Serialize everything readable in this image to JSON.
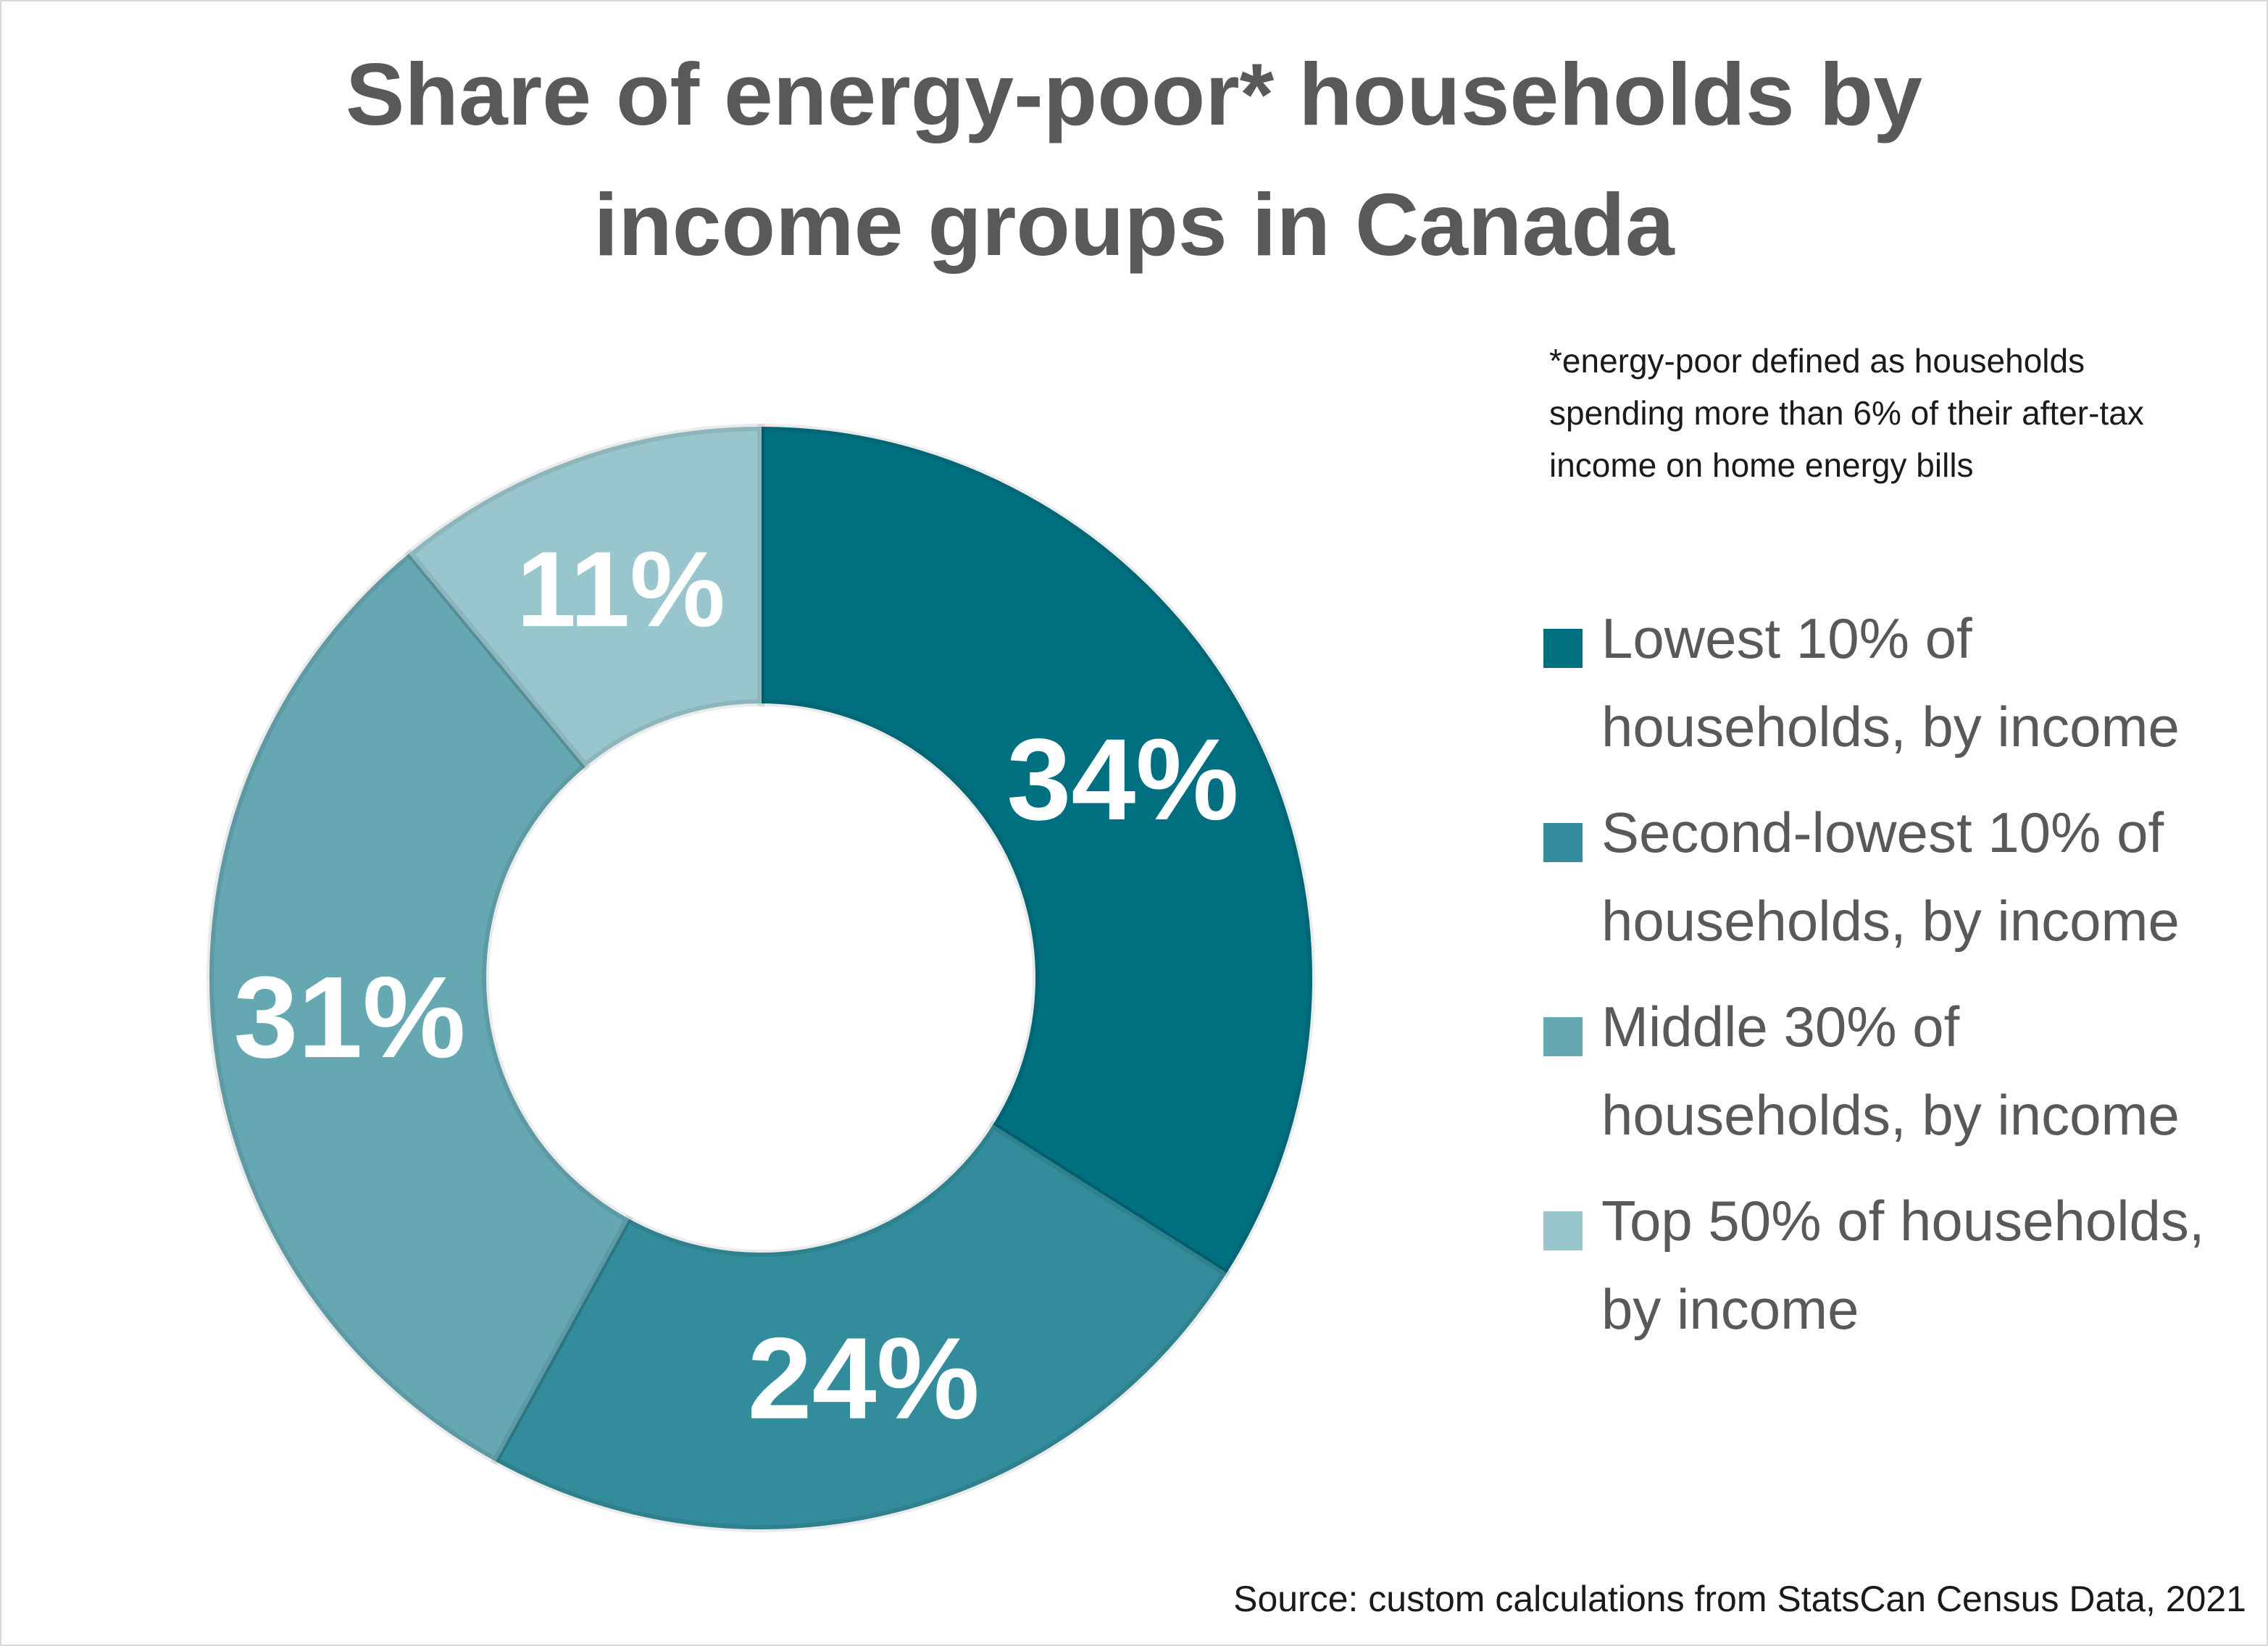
{
  "title_lines": [
    "Share of energy-poor* households by",
    "income groups in Canada"
  ],
  "footnote_lines": [
    "*energy-poor defined as households",
    "spending more than 6% of their after-tax",
    "income on home energy bills"
  ],
  "source": "Source: custom calculations from StatsCan Census Data, 2021",
  "chart_data": {
    "type": "pie",
    "donut": true,
    "categories": [
      "Lowest 10% of households, by income",
      "Second-lowest 10% of households, by income",
      "Middle 30% of households, by income",
      "Top 50% of households, by income"
    ],
    "values": [
      34,
      24,
      31,
      11
    ],
    "data_labels": [
      "34%",
      "24%",
      "31%",
      "11%"
    ],
    "colors": [
      "#007080",
      "#338c9b",
      "#66a8b2",
      "#99c5cc"
    ],
    "legend_position": "right",
    "legend_lines": [
      [
        "Lowest 10% of",
        "households, by income"
      ],
      [
        "Second-lowest 10% of",
        "households, by income"
      ],
      [
        "Middle 30% of",
        "households, by income"
      ],
      [
        "Top 50% of households,",
        "by income"
      ]
    ]
  }
}
